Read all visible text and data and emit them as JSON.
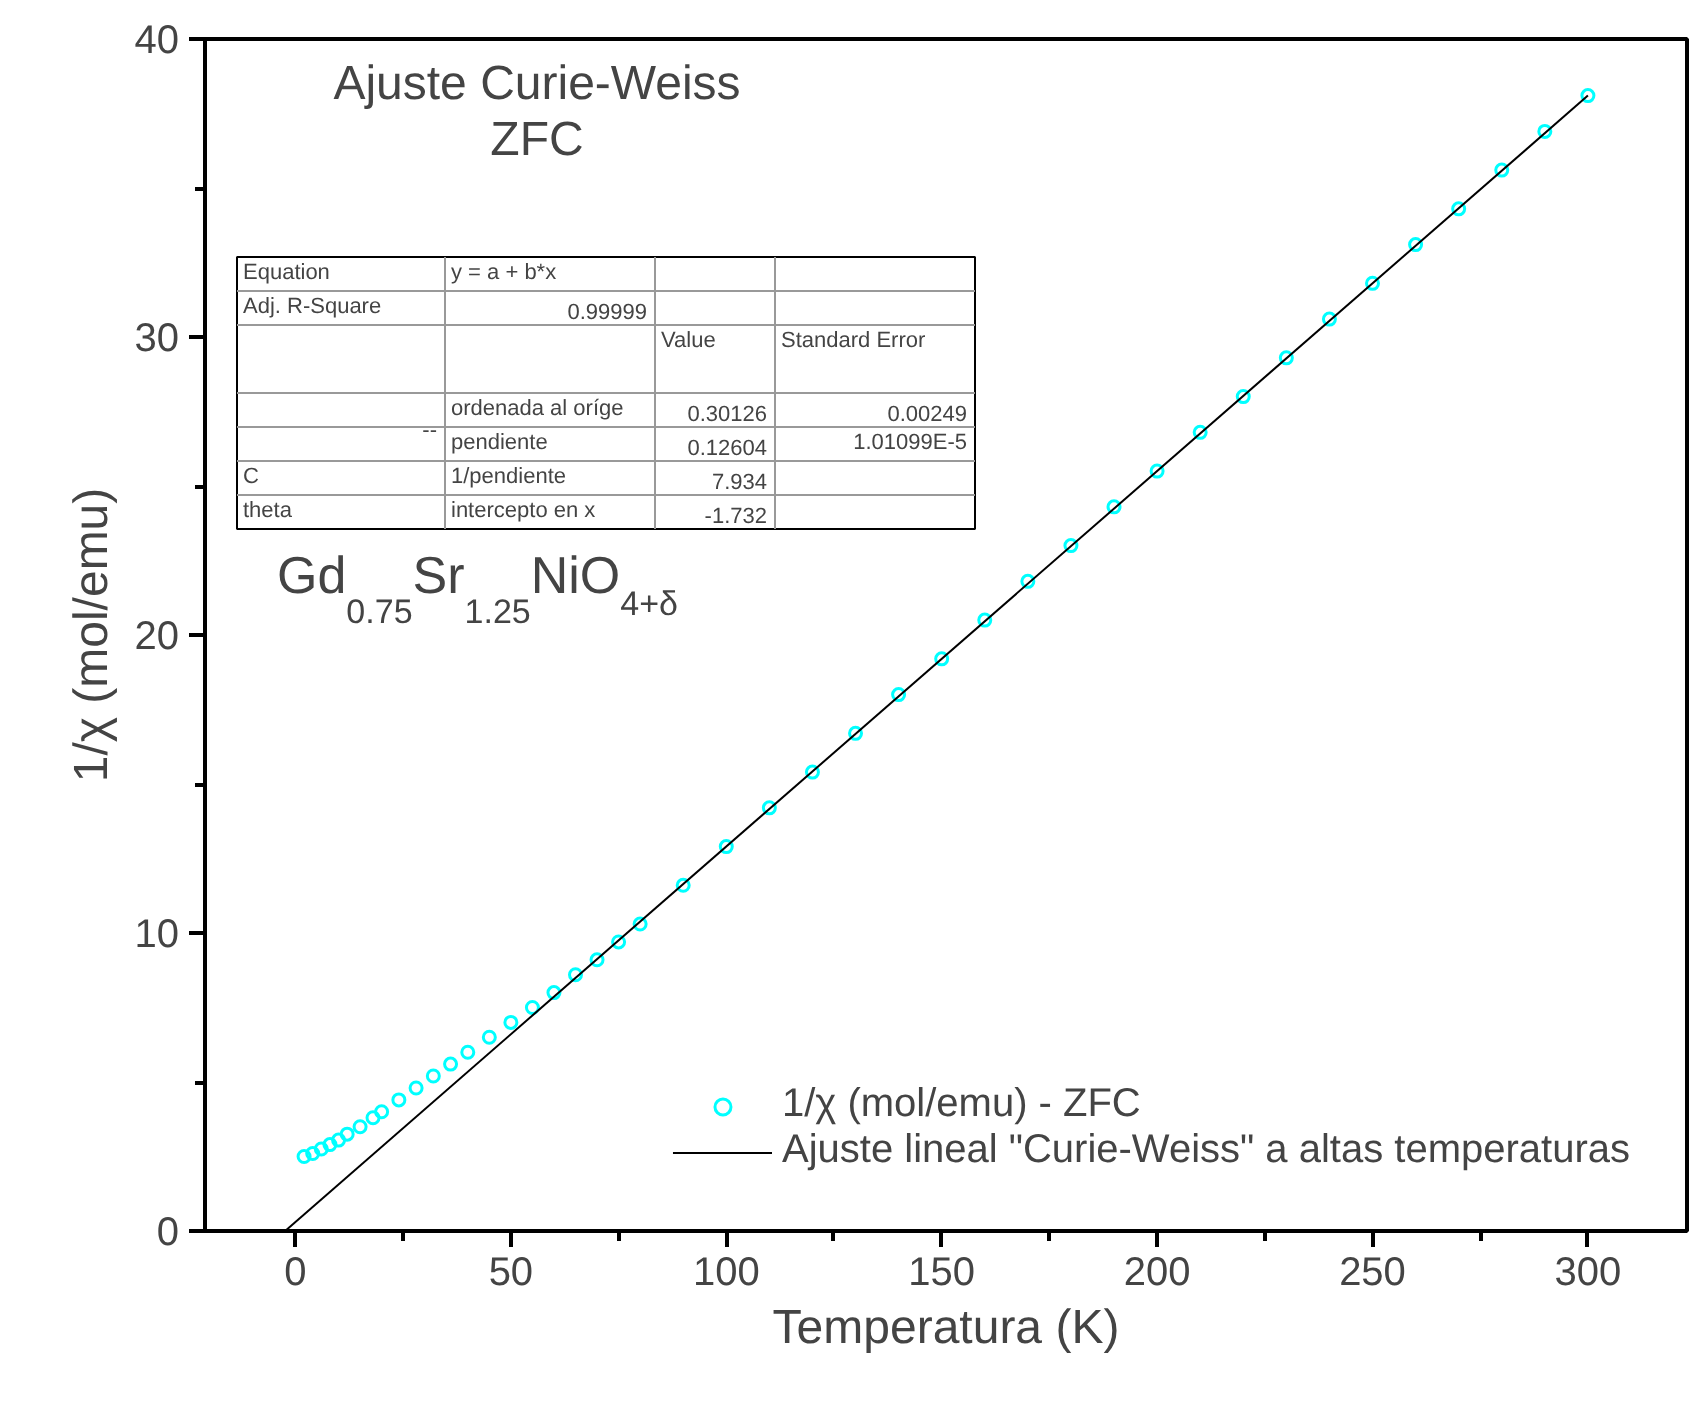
{
  "chart_data": {
    "type": "scatter",
    "title": "Ajuste Curie-Weiss",
    "subtitle": "ZFC",
    "xlabel": "Temperatura (K)",
    "ylabel": "1/χ (mol/emu)",
    "xlim": [
      -21,
      323
    ],
    "ylim": [
      0,
      40
    ],
    "xticks": [
      0,
      50,
      100,
      150,
      200,
      250,
      300
    ],
    "yticks": [
      0,
      10,
      20,
      30,
      40
    ],
    "grid": false,
    "legend": "bottom right",
    "series": [
      {
        "name": "1/χ (mol/emu) - ZFC",
        "marker": "circle",
        "color": "#00ffff",
        "x": [
          2,
          4,
          6,
          8,
          10,
          12,
          15,
          18,
          20,
          24,
          28,
          32,
          36,
          40,
          45,
          50,
          55,
          60,
          65,
          70,
          75,
          80,
          90,
          100,
          110,
          120,
          130,
          140,
          150,
          160,
          170,
          180,
          190,
          200,
          210,
          220,
          230,
          240,
          250,
          260,
          270,
          280,
          290,
          300
        ],
        "values": [
          2.5,
          2.6,
          2.75,
          2.9,
          3.05,
          3.25,
          3.5,
          3.8,
          4.0,
          4.4,
          4.8,
          5.2,
          5.6,
          6.0,
          6.5,
          7.0,
          7.5,
          8.0,
          8.6,
          9.1,
          9.7,
          10.3,
          11.6,
          12.9,
          14.2,
          15.4,
          16.7,
          18.0,
          19.2,
          20.5,
          21.8,
          23.0,
          24.3,
          25.5,
          26.8,
          28.0,
          29.3,
          30.6,
          31.8,
          33.1,
          34.3,
          35.6,
          36.9,
          38.1
        ]
      },
      {
        "name": "Ajuste lineal \"Curie-Weiss\" a altas temperaturas",
        "type": "line",
        "color": "#000000",
        "line_style": "solid",
        "x": [
          -2.4,
          300
        ],
        "values": [
          0,
          38.1
        ]
      }
    ],
    "annotations": [
      "Gd$_{0.75}$Sr$_{1.25}$NiO$_{4+δ}$",
      "Equation",
      "y = a + b*x",
      null,
      null,
      "Adj. R-Square",
      "0.99999",
      null,
      null,
      null,
      null,
      "Value",
      "Standard Error",
      "--",
      "ordenada al oríge",
      "0.30126",
      "0.00249",
      null,
      "pendiente",
      "0.12604",
      "1.01099E-5",
      "C",
      "1/pendiente",
      "7.934",
      null,
      "theta",
      "intercepto en x",
      "-1.732",
      null
    ]
  }
}
